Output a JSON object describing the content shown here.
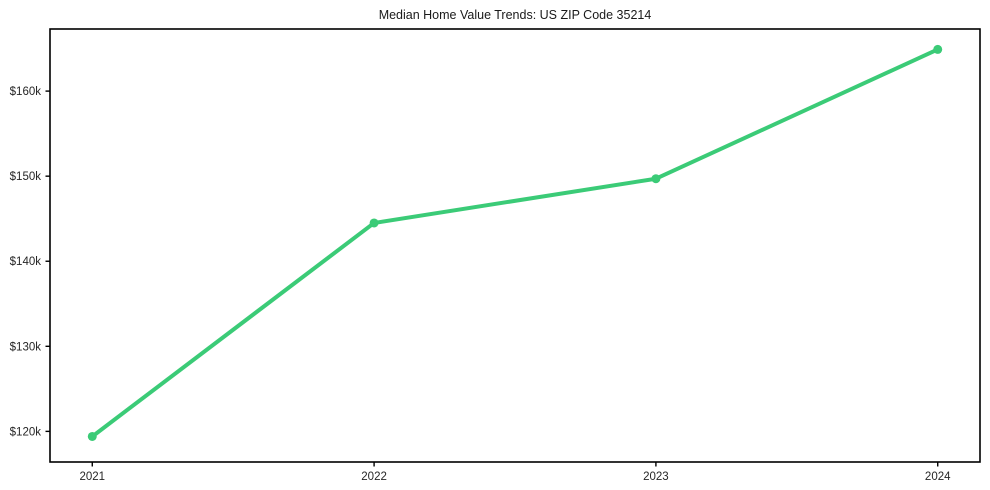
{
  "chart_data": {
    "type": "line",
    "title": "Median Home Value Trends: US ZIP Code 35214",
    "xlabel": "",
    "ylabel": "",
    "x": [
      2021,
      2022,
      2023,
      2024
    ],
    "series": [
      {
        "name": "Median Home Value",
        "values": [
          119400,
          144500,
          149700,
          164900
        ]
      }
    ],
    "x_ticks": [
      2021,
      2022,
      2023,
      2024
    ],
    "x_tick_labels": [
      "2021",
      "2022",
      "2023",
      "2024"
    ],
    "y_ticks": [
      120000,
      130000,
      140000,
      150000,
      160000
    ],
    "y_tick_labels": [
      "$120k",
      "$130k",
      "$140k",
      "$150k",
      "$160k"
    ],
    "xlim": [
      2020.85,
      2024.15
    ],
    "ylim": [
      116400,
      167300
    ],
    "grid": false,
    "legend_position": "none",
    "line_color": "#3bcb77",
    "marker_color": "#3bcb77",
    "axis_color": "#000000",
    "tick_label_color": "#262626",
    "background_color": "#ffffff",
    "line_width": 4,
    "marker_radius": 4.5
  }
}
